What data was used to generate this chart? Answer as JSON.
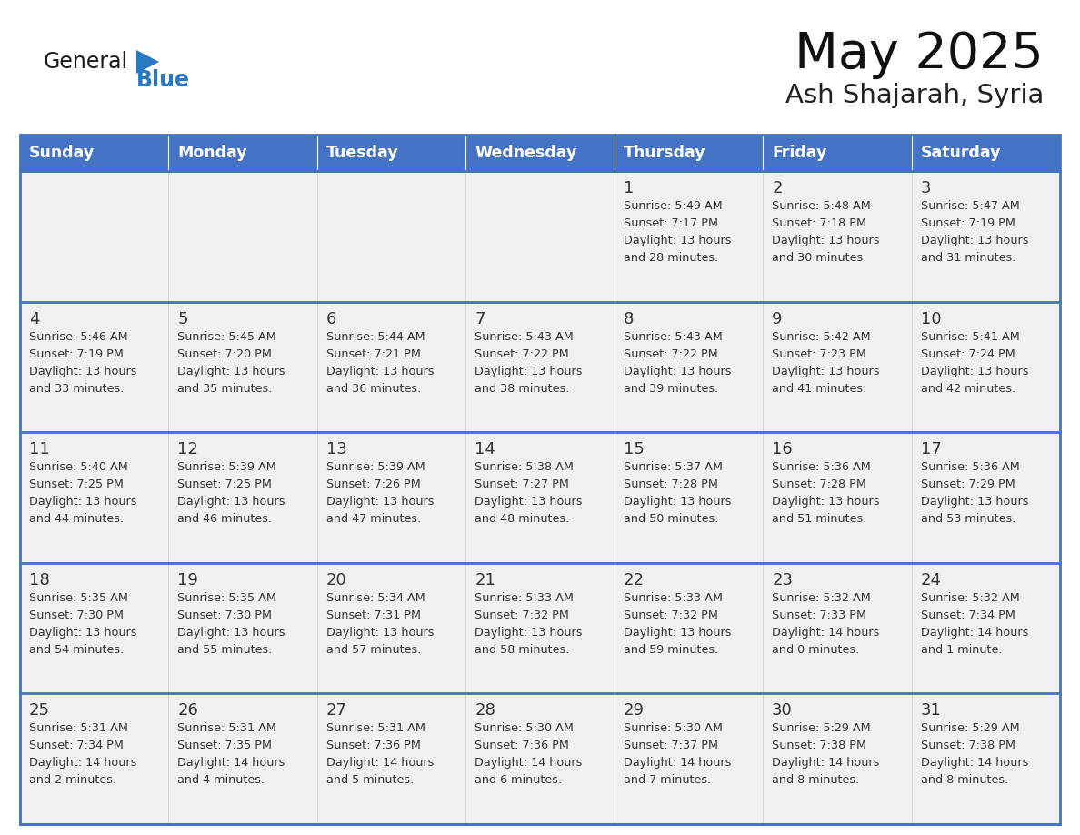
{
  "title": "May 2025",
  "subtitle": "Ash Shajarah, Syria",
  "header_bg": "#4472C4",
  "header_text_color": "#FFFFFF",
  "cell_bg_light": "#F0F0F0",
  "cell_bg_white": "#FFFFFF",
  "border_color": "#4472C4",
  "row_border_color": "#4472C4",
  "text_color": "#333333",
  "days_of_week": [
    "Sunday",
    "Monday",
    "Tuesday",
    "Wednesday",
    "Thursday",
    "Friday",
    "Saturday"
  ],
  "calendar_data": [
    [
      {
        "day": "",
        "sunrise": "",
        "sunset": "",
        "daylight": ""
      },
      {
        "day": "",
        "sunrise": "",
        "sunset": "",
        "daylight": ""
      },
      {
        "day": "",
        "sunrise": "",
        "sunset": "",
        "daylight": ""
      },
      {
        "day": "",
        "sunrise": "",
        "sunset": "",
        "daylight": ""
      },
      {
        "day": "1",
        "sunrise": "Sunrise: 5:49 AM",
        "sunset": "Sunset: 7:17 PM",
        "daylight": "Daylight: 13 hours\nand 28 minutes."
      },
      {
        "day": "2",
        "sunrise": "Sunrise: 5:48 AM",
        "sunset": "Sunset: 7:18 PM",
        "daylight": "Daylight: 13 hours\nand 30 minutes."
      },
      {
        "day": "3",
        "sunrise": "Sunrise: 5:47 AM",
        "sunset": "Sunset: 7:19 PM",
        "daylight": "Daylight: 13 hours\nand 31 minutes."
      }
    ],
    [
      {
        "day": "4",
        "sunrise": "Sunrise: 5:46 AM",
        "sunset": "Sunset: 7:19 PM",
        "daylight": "Daylight: 13 hours\nand 33 minutes."
      },
      {
        "day": "5",
        "sunrise": "Sunrise: 5:45 AM",
        "sunset": "Sunset: 7:20 PM",
        "daylight": "Daylight: 13 hours\nand 35 minutes."
      },
      {
        "day": "6",
        "sunrise": "Sunrise: 5:44 AM",
        "sunset": "Sunset: 7:21 PM",
        "daylight": "Daylight: 13 hours\nand 36 minutes."
      },
      {
        "day": "7",
        "sunrise": "Sunrise: 5:43 AM",
        "sunset": "Sunset: 7:22 PM",
        "daylight": "Daylight: 13 hours\nand 38 minutes."
      },
      {
        "day": "8",
        "sunrise": "Sunrise: 5:43 AM",
        "sunset": "Sunset: 7:22 PM",
        "daylight": "Daylight: 13 hours\nand 39 minutes."
      },
      {
        "day": "9",
        "sunrise": "Sunrise: 5:42 AM",
        "sunset": "Sunset: 7:23 PM",
        "daylight": "Daylight: 13 hours\nand 41 minutes."
      },
      {
        "day": "10",
        "sunrise": "Sunrise: 5:41 AM",
        "sunset": "Sunset: 7:24 PM",
        "daylight": "Daylight: 13 hours\nand 42 minutes."
      }
    ],
    [
      {
        "day": "11",
        "sunrise": "Sunrise: 5:40 AM",
        "sunset": "Sunset: 7:25 PM",
        "daylight": "Daylight: 13 hours\nand 44 minutes."
      },
      {
        "day": "12",
        "sunrise": "Sunrise: 5:39 AM",
        "sunset": "Sunset: 7:25 PM",
        "daylight": "Daylight: 13 hours\nand 46 minutes."
      },
      {
        "day": "13",
        "sunrise": "Sunrise: 5:39 AM",
        "sunset": "Sunset: 7:26 PM",
        "daylight": "Daylight: 13 hours\nand 47 minutes."
      },
      {
        "day": "14",
        "sunrise": "Sunrise: 5:38 AM",
        "sunset": "Sunset: 7:27 PM",
        "daylight": "Daylight: 13 hours\nand 48 minutes."
      },
      {
        "day": "15",
        "sunrise": "Sunrise: 5:37 AM",
        "sunset": "Sunset: 7:28 PM",
        "daylight": "Daylight: 13 hours\nand 50 minutes."
      },
      {
        "day": "16",
        "sunrise": "Sunrise: 5:36 AM",
        "sunset": "Sunset: 7:28 PM",
        "daylight": "Daylight: 13 hours\nand 51 minutes."
      },
      {
        "day": "17",
        "sunrise": "Sunrise: 5:36 AM",
        "sunset": "Sunset: 7:29 PM",
        "daylight": "Daylight: 13 hours\nand 53 minutes."
      }
    ],
    [
      {
        "day": "18",
        "sunrise": "Sunrise: 5:35 AM",
        "sunset": "Sunset: 7:30 PM",
        "daylight": "Daylight: 13 hours\nand 54 minutes."
      },
      {
        "day": "19",
        "sunrise": "Sunrise: 5:35 AM",
        "sunset": "Sunset: 7:30 PM",
        "daylight": "Daylight: 13 hours\nand 55 minutes."
      },
      {
        "day": "20",
        "sunrise": "Sunrise: 5:34 AM",
        "sunset": "Sunset: 7:31 PM",
        "daylight": "Daylight: 13 hours\nand 57 minutes."
      },
      {
        "day": "21",
        "sunrise": "Sunrise: 5:33 AM",
        "sunset": "Sunset: 7:32 PM",
        "daylight": "Daylight: 13 hours\nand 58 minutes."
      },
      {
        "day": "22",
        "sunrise": "Sunrise: 5:33 AM",
        "sunset": "Sunset: 7:32 PM",
        "daylight": "Daylight: 13 hours\nand 59 minutes."
      },
      {
        "day": "23",
        "sunrise": "Sunrise: 5:32 AM",
        "sunset": "Sunset: 7:33 PM",
        "daylight": "Daylight: 14 hours\nand 0 minutes."
      },
      {
        "day": "24",
        "sunrise": "Sunrise: 5:32 AM",
        "sunset": "Sunset: 7:34 PM",
        "daylight": "Daylight: 14 hours\nand 1 minute."
      }
    ],
    [
      {
        "day": "25",
        "sunrise": "Sunrise: 5:31 AM",
        "sunset": "Sunset: 7:34 PM",
        "daylight": "Daylight: 14 hours\nand 2 minutes."
      },
      {
        "day": "26",
        "sunrise": "Sunrise: 5:31 AM",
        "sunset": "Sunset: 7:35 PM",
        "daylight": "Daylight: 14 hours\nand 4 minutes."
      },
      {
        "day": "27",
        "sunrise": "Sunrise: 5:31 AM",
        "sunset": "Sunset: 7:36 PM",
        "daylight": "Daylight: 14 hours\nand 5 minutes."
      },
      {
        "day": "28",
        "sunrise": "Sunrise: 5:30 AM",
        "sunset": "Sunset: 7:36 PM",
        "daylight": "Daylight: 14 hours\nand 6 minutes."
      },
      {
        "day": "29",
        "sunrise": "Sunrise: 5:30 AM",
        "sunset": "Sunset: 7:37 PM",
        "daylight": "Daylight: 14 hours\nand 7 minutes."
      },
      {
        "day": "30",
        "sunrise": "Sunrise: 5:29 AM",
        "sunset": "Sunset: 7:38 PM",
        "daylight": "Daylight: 14 hours\nand 8 minutes."
      },
      {
        "day": "31",
        "sunrise": "Sunrise: 5:29 AM",
        "sunset": "Sunset: 7:38 PM",
        "daylight": "Daylight: 14 hours\nand 8 minutes."
      }
    ]
  ],
  "logo_general_color": "#1a1a1a",
  "logo_blue_color": "#2878c3",
  "logo_triangle_color": "#2878c3"
}
